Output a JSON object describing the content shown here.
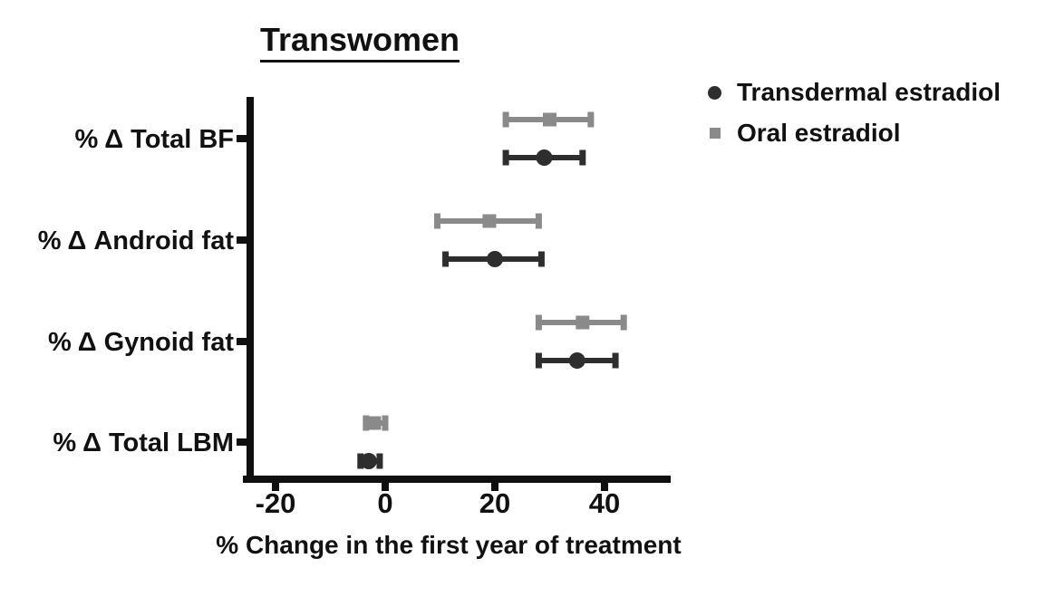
{
  "title": "Transwomen",
  "xlabel": "% Change in the first year of treatment",
  "legend": {
    "items": [
      {
        "label": "Transdermal estradiol",
        "marker": "circle-marker-icon",
        "color": "#2e2e2e"
      },
      {
        "label": "Oral estradiol",
        "marker": "square-marker-icon",
        "color": "#8a8a8a"
      }
    ]
  },
  "colors": {
    "transdermal": "#2e2e2e",
    "oral": "#8a8a8a",
    "axis": "#0f0f0f",
    "text": "#111111",
    "background": "#ffffff"
  },
  "chart_data": {
    "type": "scatter",
    "style": "horizontal-forest-plot-with-error-bars",
    "title": "Transwomen",
    "xlabel": "% Change in the first year of treatment",
    "ylabel": "",
    "categories": [
      "% Δ Total BF",
      "% Δ Android fat",
      "% Δ Gynoid fat",
      "% Δ Total LBM"
    ],
    "x_ticks": [
      -20,
      0,
      20,
      40
    ],
    "xlim": [
      -25.5,
      52
    ],
    "grid": false,
    "legend_position": "top-right",
    "series": [
      {
        "name": "Oral estradiol",
        "marker": "square",
        "color": "#8a8a8a",
        "row_position": "upper",
        "values": [
          30,
          19,
          36,
          -2
        ],
        "ci_low": [
          22,
          9.5,
          28,
          -3.5
        ],
        "ci_high": [
          37.5,
          28,
          43.5,
          0
        ]
      },
      {
        "name": "Transdermal estradiol",
        "marker": "circle",
        "color": "#2e2e2e",
        "row_position": "lower",
        "values": [
          29,
          20,
          35,
          -3
        ],
        "ci_low": [
          22,
          11,
          28,
          -4.5
        ],
        "ci_high": [
          36,
          28.5,
          42,
          -1
        ]
      }
    ]
  }
}
